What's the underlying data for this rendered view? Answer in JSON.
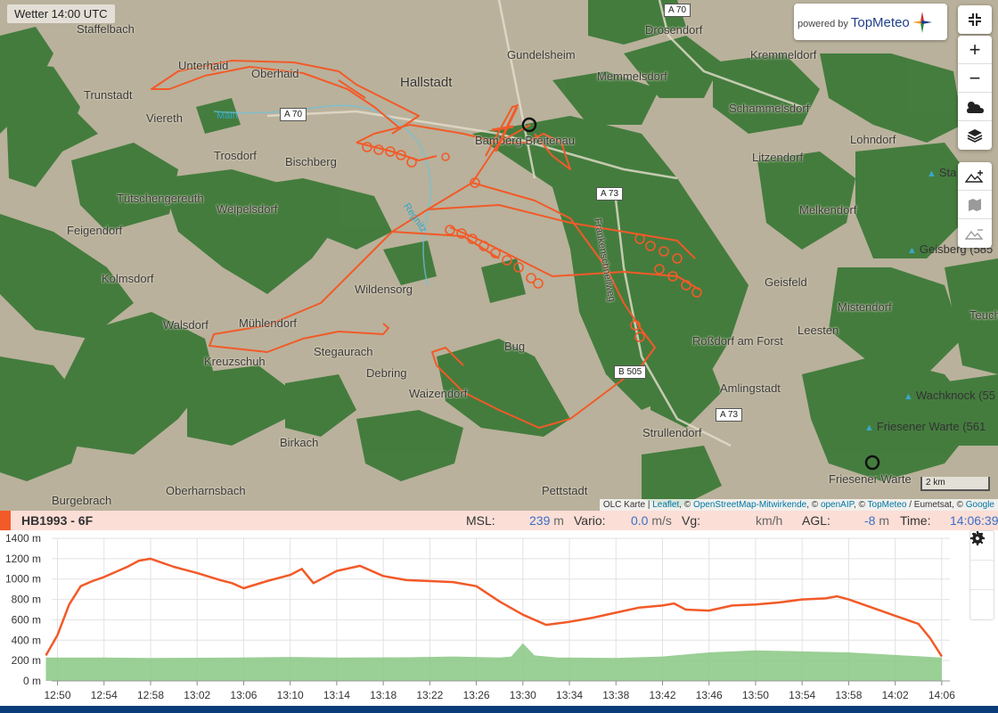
{
  "map": {
    "weather_label": "Wetter 14:00 UTC",
    "topmeteo": {
      "powered": "powered by",
      "brand": "TopMeteo"
    },
    "controls": {
      "collapse": "collapse-icon",
      "zoom_in": "+",
      "zoom_out": "−",
      "weather": "weather-cloud-icon",
      "layers": "layers-icon",
      "terrain_add": "terrain-add-icon",
      "map_pins": "map-pins-icon",
      "terrain_remove": "terrain-remove-icon"
    },
    "places": {
      "staffelbach": "Staffelbach",
      "unterhaid": "Unterhaid",
      "oberhaid": "Oberhaid",
      "trunstadt": "Trunstadt",
      "viereth": "Viereth",
      "hallstadt": "Hallstadt",
      "gundelsheim": "Gundelsheim",
      "drosendorf": "Drosendorf",
      "kremmeldorf": "Kremmeldorf",
      "memmelsdorf": "Memmelsdorf",
      "schammelsdorf": "Schammelsdorf",
      "lohndorf": "Lohndorf",
      "trosdorf": "Trosdorf",
      "bischberg": "Bischberg",
      "bamberg_breitenau": "Bamberg Breitenau",
      "litzendorf": "Litzendorf",
      "tuetschengereuth": "Tütschengereuth",
      "weipelsdorf": "Weipelsdorf",
      "melkendorf": "Melkendorf",
      "feigendorf": "Feigendorf",
      "kolmsdorf": "Kolmsdorf",
      "wildensorg": "Wildensorg",
      "geisfeld": "Geisfeld",
      "mistendorf": "Mistendorf",
      "walsdorf": "Walsdorf",
      "muehlendorf": "Mühlendorf",
      "bug": "Bug",
      "rossdorf": "Roßdorf am Forst",
      "leesten": "Leesten",
      "teuch": "Teuch",
      "kreuzschuh": "Kreuzschuh",
      "stegaurach": "Stegaurach",
      "debring": "Debring",
      "waizendorf": "Waizendorf",
      "amlingstadt": "Amlingstadt",
      "birkach": "Birkach",
      "strullendorf": "Strullendorf",
      "friesener_warte": "Friesener Warte",
      "burgebrach": "Burgebrach",
      "oberharnsbach": "Oberharnsbach",
      "pettstadt": "Pettstadt"
    },
    "peaks": {
      "stammberg": "Sta",
      "geisberg": "Geisberg (585",
      "wachknock": "Wachknock (55",
      "friesener_warte": "Friesener Warte (561"
    },
    "rivers": {
      "main": "Main",
      "regnitz": "Regnitz",
      "frankenschnellweg": "Frankenschnellweg"
    },
    "roads": {
      "a70_top": "A 70",
      "a70": "A 70",
      "a73": "A 73",
      "b505": "B 505",
      "a73_south": "A 73"
    },
    "scale": "2 km",
    "attribution": {
      "olc": "OLC Karte",
      "leaflet": "Leaflet",
      "c1": ", © ",
      "osm": "OpenStreetMap-Mitwirkende",
      "c2": ", © ",
      "openaip": "openAIP",
      "c3": ", © ",
      "topmeteo": "TopMeteo",
      "tail": " / Eumetsat, © ",
      "google": "Google"
    }
  },
  "status": {
    "flight_id": "HB1993 - 6F",
    "msl_label": "MSL:",
    "msl_value": "239",
    "msl_unit": "m",
    "vario_label": "Vario:",
    "vario_value": "0.0",
    "vario_unit": "m/s",
    "vg_label": "Vg:",
    "vg_value": "",
    "vg_unit": "km/h",
    "agl_label": "AGL:",
    "agl_value": "-8",
    "agl_unit": "m",
    "time_label": "Time:",
    "time_value": "14:06:39"
  },
  "profile_controls": [
    "gear-icon",
    "satellite-dish-icon",
    "magnet-icon"
  ],
  "chart_data": {
    "type": "area",
    "ylabel": "",
    "xlabel": "",
    "y_unit": "m",
    "ylim": [
      0,
      1400
    ],
    "yticks": [
      "0 m",
      "200 m",
      "400 m",
      "600 m",
      "800 m",
      "1000 m",
      "1200 m",
      "1400 m"
    ],
    "xticks": [
      "12:50",
      "12:54",
      "12:58",
      "13:02",
      "13:06",
      "13:10",
      "13:14",
      "13:18",
      "13:22",
      "13:26",
      "13:30",
      "13:34",
      "13:38",
      "13:42",
      "13:46",
      "13:50",
      "13:54",
      "13:58",
      "14:02",
      "14:06"
    ],
    "x_start_min": 769.5,
    "x_end_min": 846.7,
    "grid": true,
    "series": [
      {
        "color": "#f25a28",
        "x": [
          "12:49",
          "12:50",
          "12:51",
          "12:52",
          "12:53",
          "12:54",
          "12:56",
          "12:57",
          "12:58",
          "13:00",
          "13:02",
          "13:04",
          "13:05",
          "13:06",
          "13:08",
          "13:10",
          "13:11",
          "13:12",
          "13:14",
          "13:16",
          "13:18",
          "13:20",
          "13:22",
          "13:24",
          "13:26",
          "13:28",
          "13:30",
          "13:32",
          "13:34",
          "13:36",
          "13:38",
          "13:40",
          "13:42",
          "13:43",
          "13:44",
          "13:46",
          "13:48",
          "13:50",
          "13:52",
          "13:54",
          "13:56",
          "13:57",
          "13:58",
          "14:00",
          "14:02",
          "14:04",
          "14:05",
          "14:06"
        ],
        "values": [
          250,
          450,
          750,
          930,
          980,
          1020,
          1120,
          1180,
          1200,
          1120,
          1060,
          990,
          960,
          910,
          980,
          1040,
          1100,
          960,
          1080,
          1130,
          1030,
          990,
          980,
          970,
          930,
          780,
          650,
          550,
          580,
          620,
          670,
          720,
          740,
          760,
          700,
          690,
          740,
          750,
          770,
          800,
          810,
          830,
          800,
          720,
          640,
          560,
          420,
          240
        ]
      },
      {
        "color": "#8fca8a",
        "x": [
          "12:49",
          "12:54",
          "12:58",
          "13:04",
          "13:10",
          "13:14",
          "13:20",
          "13:24",
          "13:28",
          "13:29",
          "13:30",
          "13:31",
          "13:33",
          "13:38",
          "13:42",
          "13:46",
          "13:50",
          "13:54",
          "13:58",
          "14:02",
          "14:06"
        ],
        "values": [
          230,
          230,
          225,
          228,
          235,
          230,
          232,
          240,
          230,
          240,
          370,
          250,
          230,
          225,
          240,
          280,
          300,
          290,
          280,
          255,
          230
        ]
      }
    ]
  }
}
